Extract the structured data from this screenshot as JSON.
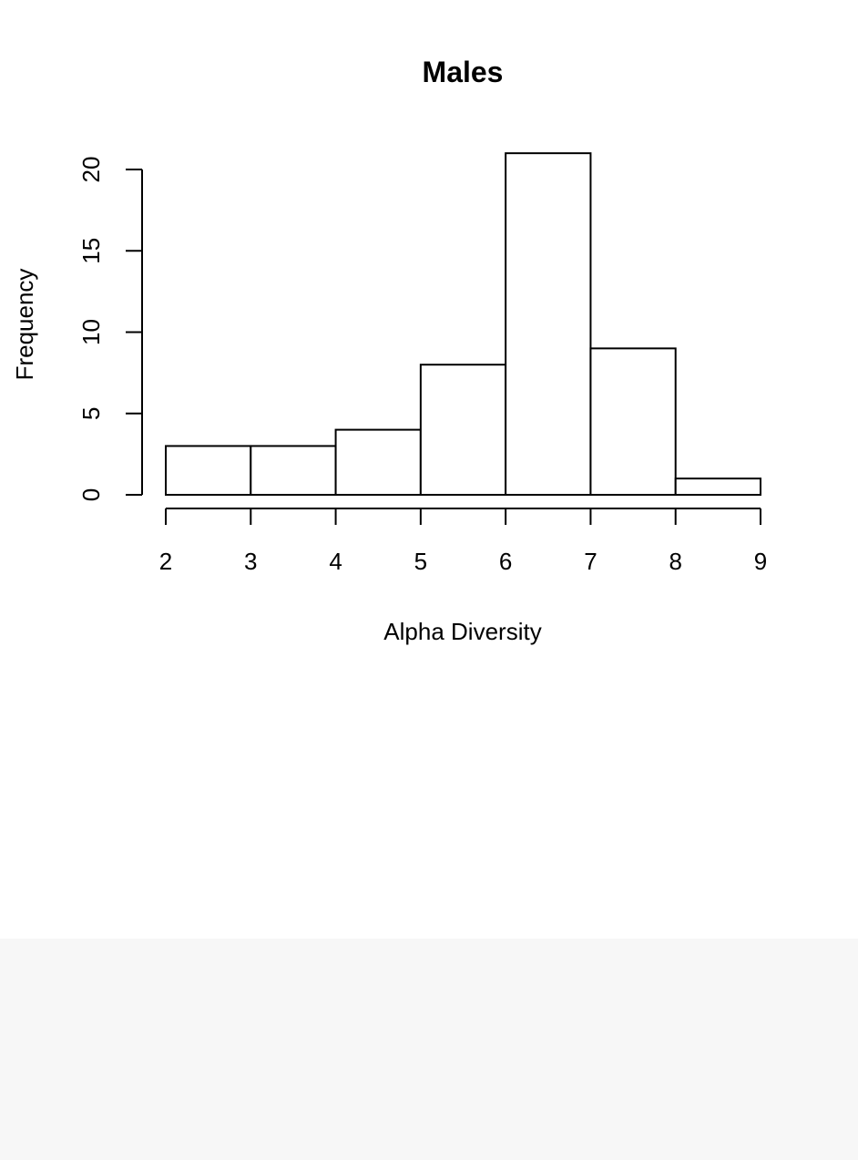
{
  "chart_data": {
    "type": "bar",
    "subtype": "histogram",
    "title": "Males",
    "xlabel": "Alpha Diversity",
    "ylabel": "Frequency",
    "bins": [
      {
        "start": 2,
        "end": 3,
        "count": 3
      },
      {
        "start": 3,
        "end": 4,
        "count": 3
      },
      {
        "start": 4,
        "end": 5,
        "count": 4
      },
      {
        "start": 5,
        "end": 6,
        "count": 8
      },
      {
        "start": 6,
        "end": 7,
        "count": 21
      },
      {
        "start": 7,
        "end": 8,
        "count": 9
      },
      {
        "start": 8,
        "end": 9,
        "count": 1
      }
    ],
    "xlim": [
      2,
      9
    ],
    "ylim": [
      0,
      21
    ],
    "x_ticks": [
      2,
      3,
      4,
      5,
      6,
      7,
      8,
      9
    ],
    "y_ticks": [
      0,
      5,
      10,
      15,
      20
    ],
    "grid": false,
    "bar_fill": "#ffffff",
    "bar_stroke": "#000000"
  },
  "colors": {
    "background": "#ffffff",
    "footer_background": "#f7f7f7"
  }
}
